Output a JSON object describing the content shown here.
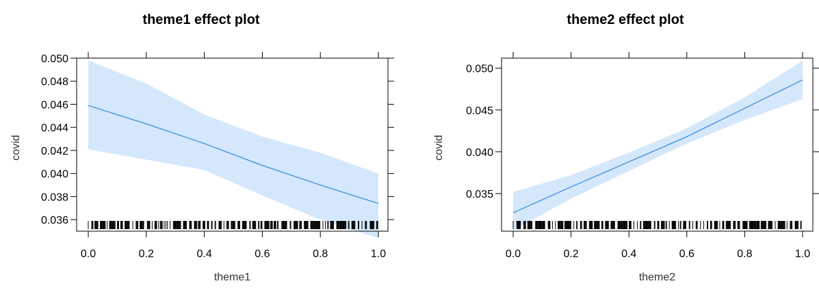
{
  "chart_data": [
    {
      "type": "line",
      "title": "theme1 effect plot",
      "xlabel": "theme1",
      "ylabel": "covid",
      "xlim": [
        0,
        1
      ],
      "ylim": [
        0.035,
        0.05
      ],
      "xticks": [
        0.0,
        0.2,
        0.4,
        0.6,
        0.8,
        1.0
      ],
      "xtick_labels": [
        "0.0",
        "0.2",
        "0.4",
        "0.6",
        "0.8",
        "1.0"
      ],
      "yticks": [
        0.036,
        0.038,
        0.04,
        0.042,
        0.044,
        0.046,
        0.048,
        0.05
      ],
      "ytick_labels": [
        "0.036",
        "0.038",
        "0.040",
        "0.042",
        "0.044",
        "0.046",
        "0.048",
        "0.050"
      ],
      "series": [
        {
          "x": [
            0.0,
            0.2,
            0.4,
            0.6,
            0.8,
            1.0
          ],
          "values": [
            0.0459,
            0.0443,
            0.0426,
            0.0407,
            0.039,
            0.0374
          ],
          "lower": [
            0.0421,
            0.0412,
            0.0403,
            0.0381,
            0.036,
            0.0344
          ],
          "upper": [
            0.0498,
            0.0478,
            0.0451,
            0.0432,
            0.0418,
            0.04
          ]
        }
      ],
      "rug": true,
      "grid": false,
      "colors": {
        "line": "#3d8fdc",
        "band": "#d4e7fb",
        "axis": "#000000"
      }
    },
    {
      "type": "line",
      "title": "theme2 effect plot",
      "xlabel": "theme2",
      "ylabel": "covid",
      "xlim": [
        0,
        1
      ],
      "ylim": [
        0.0305,
        0.0512
      ],
      "xticks": [
        0.0,
        0.2,
        0.4,
        0.6,
        0.8,
        1.0
      ],
      "xtick_labels": [
        "0.0",
        "0.2",
        "0.4",
        "0.6",
        "0.8",
        "1.0"
      ],
      "yticks": [
        0.035,
        0.04,
        0.045,
        0.05
      ],
      "ytick_labels": [
        "0.035",
        "0.040",
        "0.045",
        "0.050"
      ],
      "series": [
        {
          "x": [
            0.0,
            0.2,
            0.4,
            0.6,
            0.8,
            1.0
          ],
          "values": [
            0.0327,
            0.0358,
            0.0388,
            0.0418,
            0.0452,
            0.0486
          ],
          "lower": [
            0.0306,
            0.0344,
            0.0377,
            0.041,
            0.0438,
            0.0463
          ],
          "upper": [
            0.0352,
            0.0372,
            0.0399,
            0.0428,
            0.0465,
            0.0509
          ]
        }
      ],
      "rug": true,
      "grid": false,
      "colors": {
        "line": "#3d8fdc",
        "band": "#d4e7fb",
        "axis": "#000000"
      }
    }
  ]
}
